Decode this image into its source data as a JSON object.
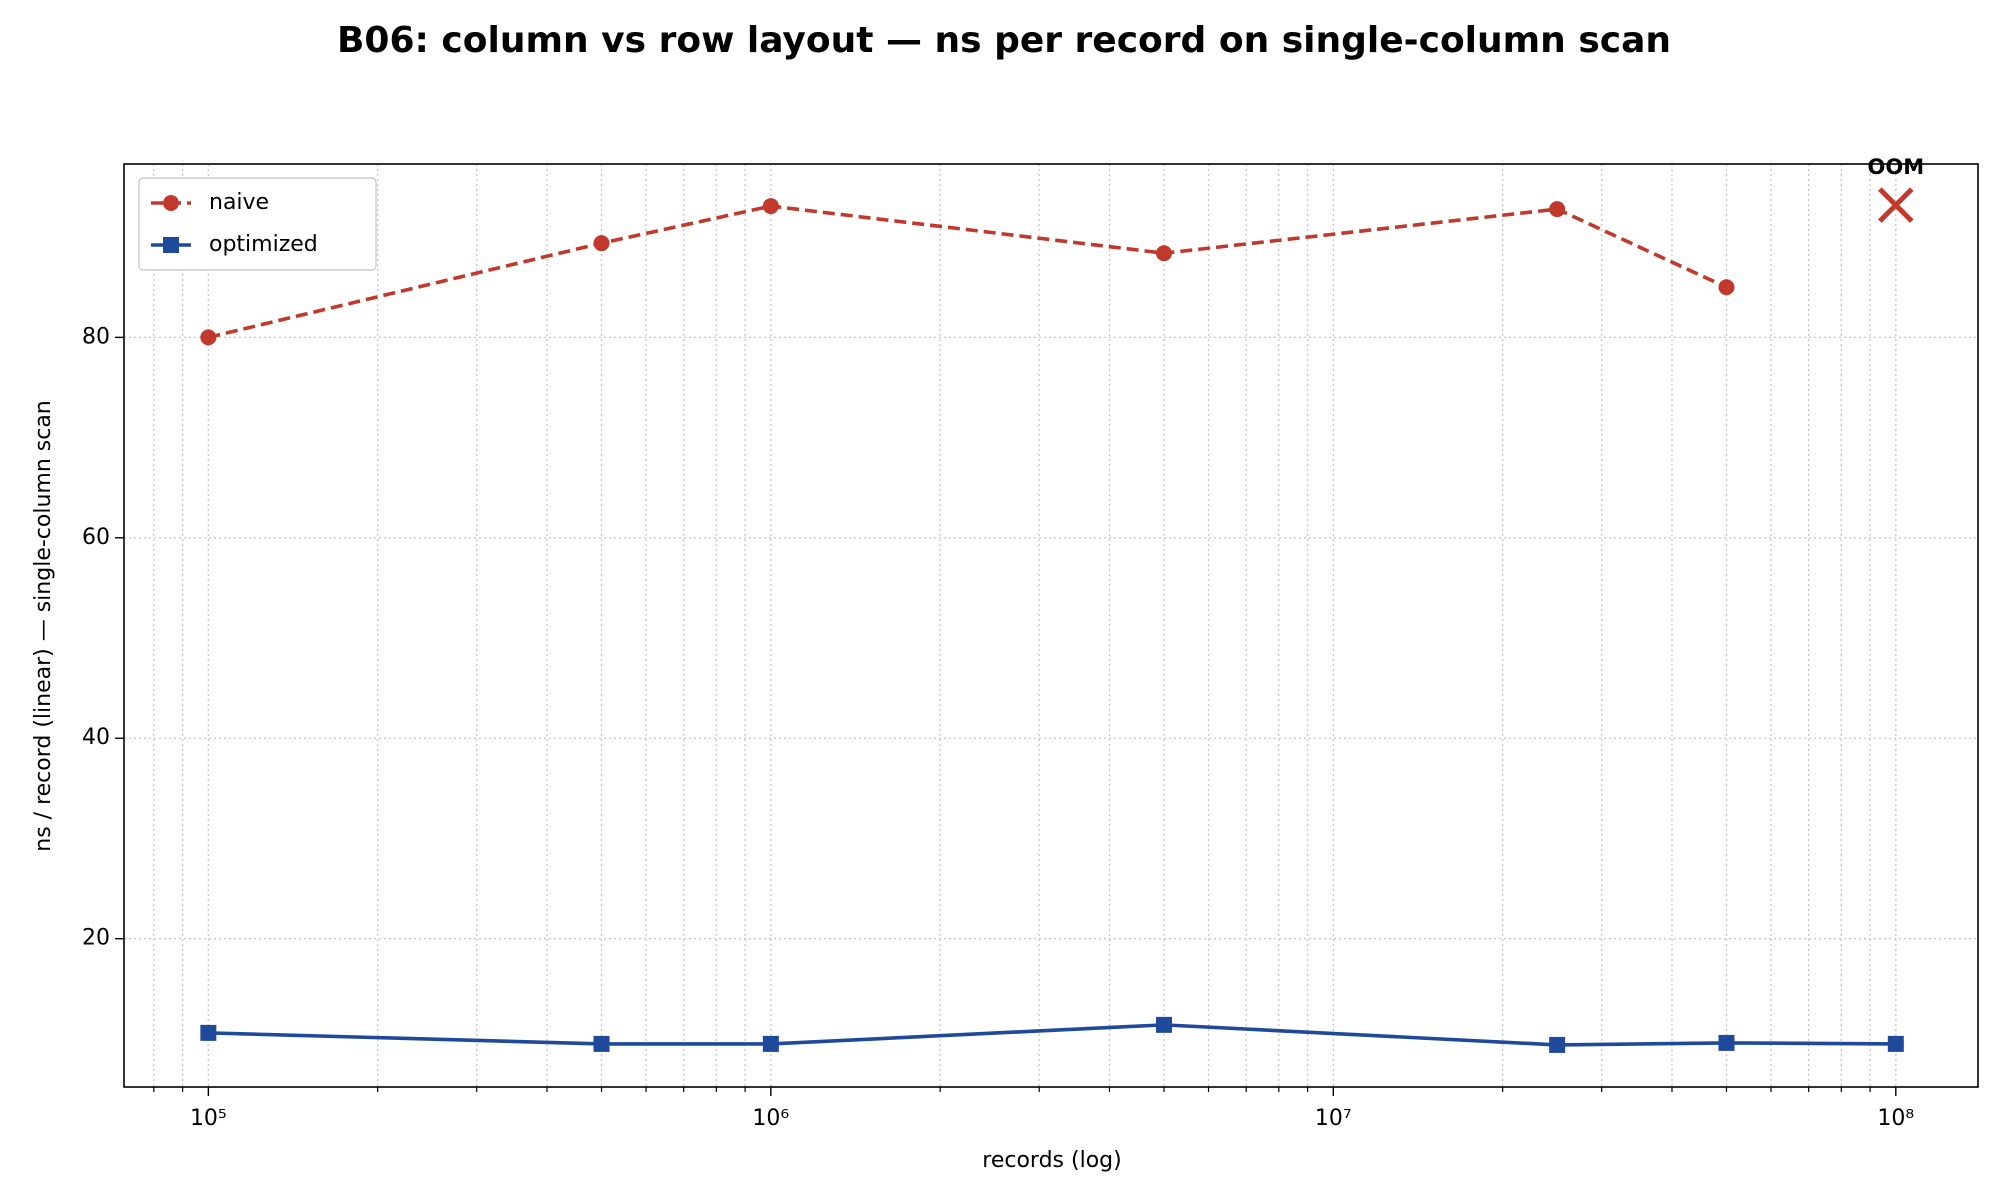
{
  "chart_data": {
    "type": "line",
    "title": "B06: column vs row layout — ns per record on single-column scan",
    "xlabel": "records (log)",
    "ylabel": "ns / record (linear) — single-column scan",
    "xscale": "log",
    "x": [
      100000,
      500000,
      1000000,
      5000000,
      25000000,
      50000000,
      100000000
    ],
    "series": [
      {
        "name": "naive",
        "color": "#c0392b",
        "linestyle": "dashed",
        "marker": "circle",
        "values": [
          80.0,
          89.4,
          93.1,
          88.4,
          92.8,
          85.0,
          null
        ]
      },
      {
        "name": "optimized",
        "color": "#1f4a9c",
        "linestyle": "solid",
        "marker": "square",
        "values": [
          10.6,
          9.5,
          9.5,
          11.4,
          9.4,
          9.6,
          9.5
        ]
      }
    ],
    "annotations": [
      {
        "text": "OOM",
        "x": 100000000,
        "y": 93.2,
        "color": "#c0392b"
      }
    ],
    "xlim": [
      70800,
      140000000
    ],
    "ylim": [
      5.2,
      97.3
    ],
    "xticks": [
      {
        "value": 100000,
        "label": "10⁵"
      },
      {
        "value": 1000000,
        "label": "10⁶"
      },
      {
        "value": 10000000,
        "label": "10⁷"
      },
      {
        "value": 100000000,
        "label": "10⁸"
      }
    ],
    "xminorticks": [
      80000,
      90000,
      200000,
      300000,
      400000,
      500000,
      600000,
      700000,
      800000,
      900000,
      2000000,
      3000000,
      4000000,
      5000000,
      6000000,
      7000000,
      8000000,
      9000000,
      20000000,
      30000000,
      40000000,
      50000000,
      60000000,
      70000000,
      80000000,
      90000000
    ],
    "yticks": [
      20,
      40,
      60,
      80
    ],
    "grid": true,
    "legend": "upper left"
  }
}
